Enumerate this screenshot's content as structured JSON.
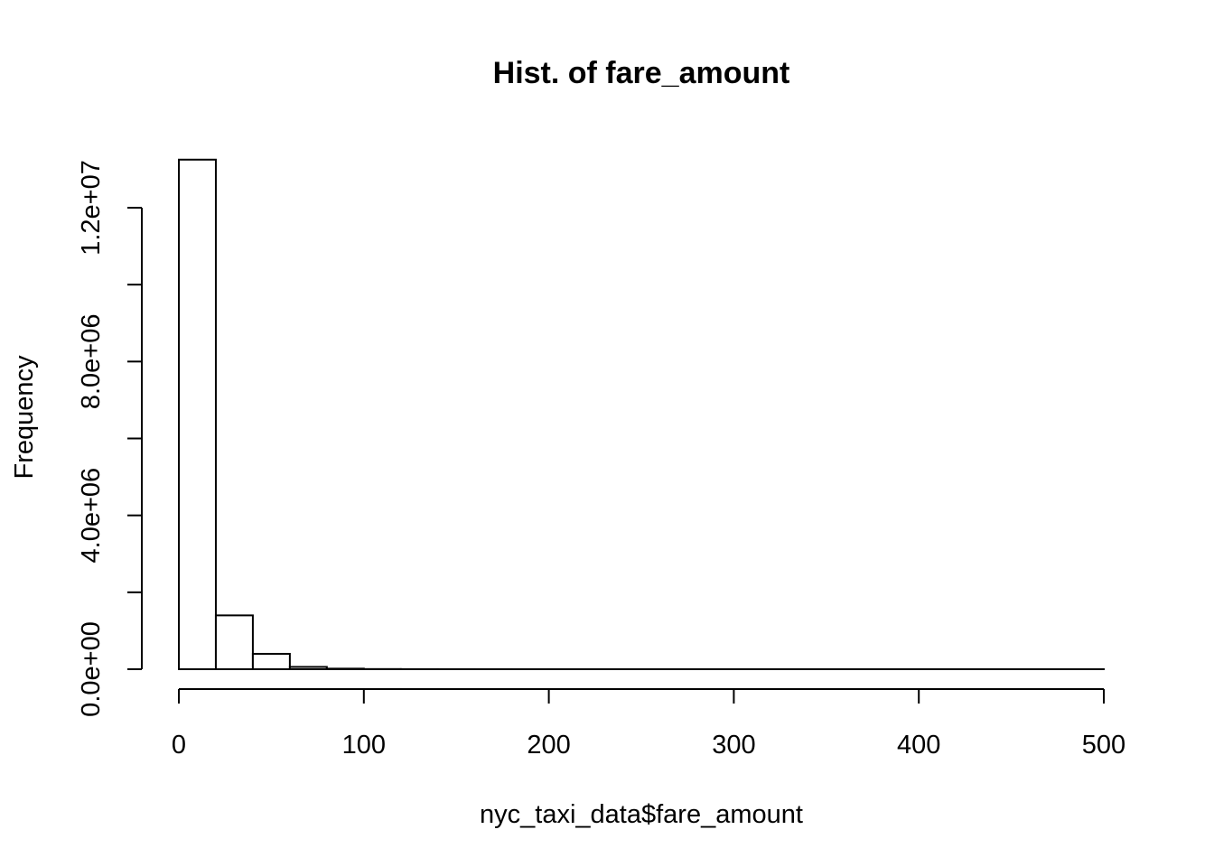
{
  "chart_data": {
    "type": "bar",
    "title": "Hist. of fare_amount",
    "xlabel": "nyc_taxi_data$fare_amount",
    "ylabel": "Frequency",
    "xlim": [
      0,
      500
    ],
    "ylim": [
      0,
      13300000
    ],
    "x_ticks": [
      0,
      100,
      200,
      300,
      400,
      500
    ],
    "x_tick_labels": [
      "0",
      "100",
      "200",
      "300",
      "400",
      "500"
    ],
    "y_ticks": [
      0,
      2000000,
      4000000,
      6000000,
      8000000,
      10000000,
      12000000
    ],
    "y_tick_labels": [
      {
        "value": 0,
        "label": "0.0e+00"
      },
      {
        "value": 4000000,
        "label": "4.0e+06"
      },
      {
        "value": 8000000,
        "label": "8.0e+06"
      },
      {
        "value": 12000000,
        "label": "1.2e+07"
      }
    ],
    "bin_width": 20,
    "bins": [
      {
        "start": 0,
        "end": 20,
        "count": 13250000
      },
      {
        "start": 20,
        "end": 40,
        "count": 1400000
      },
      {
        "start": 40,
        "end": 60,
        "count": 400000
      },
      {
        "start": 60,
        "end": 80,
        "count": 60000
      },
      {
        "start": 80,
        "end": 100,
        "count": 15000
      },
      {
        "start": 100,
        "end": 120,
        "count": 4000
      },
      {
        "start": 120,
        "end": 140,
        "count": 1500
      },
      {
        "start": 140,
        "end": 160,
        "count": 700
      },
      {
        "start": 160,
        "end": 180,
        "count": 400
      },
      {
        "start": 180,
        "end": 200,
        "count": 300
      },
      {
        "start": 200,
        "end": 220,
        "count": 200
      },
      {
        "start": 220,
        "end": 240,
        "count": 150
      },
      {
        "start": 240,
        "end": 260,
        "count": 120
      },
      {
        "start": 260,
        "end": 280,
        "count": 100
      },
      {
        "start": 280,
        "end": 300,
        "count": 80
      },
      {
        "start": 300,
        "end": 320,
        "count": 60
      },
      {
        "start": 320,
        "end": 340,
        "count": 50
      },
      {
        "start": 340,
        "end": 360,
        "count": 40
      },
      {
        "start": 360,
        "end": 380,
        "count": 30
      },
      {
        "start": 380,
        "end": 400,
        "count": 25
      },
      {
        "start": 400,
        "end": 420,
        "count": 20
      },
      {
        "start": 420,
        "end": 440,
        "count": 15
      },
      {
        "start": 440,
        "end": 460,
        "count": 12
      },
      {
        "start": 460,
        "end": 480,
        "count": 10
      },
      {
        "start": 480,
        "end": 500,
        "count": 8
      }
    ],
    "colors": {
      "bar_fill": "#ffffff",
      "bar_stroke": "#000000",
      "background": "#ffffff"
    },
    "grid": false,
    "legend": "none"
  }
}
